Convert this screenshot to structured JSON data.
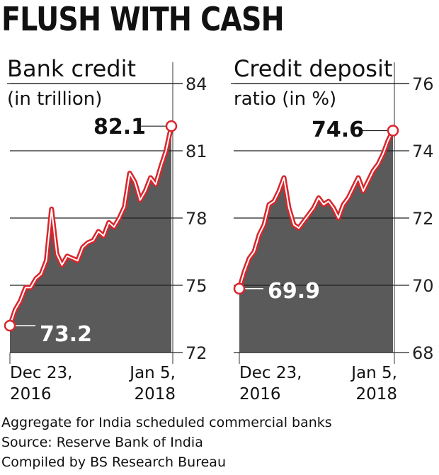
{
  "headline": "FLUSH WITH CASH",
  "chart_data": [
    {
      "type": "area",
      "title_lines": [
        "Bank credit",
        "(in trillion)"
      ],
      "ylim": [
        72,
        84
      ],
      "yticks": [
        84,
        81,
        78,
        75,
        72
      ],
      "x_labels": [
        [
          "Dec 23,",
          "2016"
        ],
        [
          "Jan 5,",
          "2018"
        ]
      ],
      "start_label": "73.2",
      "end_label": "82.1",
      "values": [
        73.2,
        73.9,
        74.3,
        74.9,
        74.9,
        75.3,
        75.5,
        76.1,
        78.4,
        76.4,
        75.9,
        76.3,
        76.2,
        76.1,
        76.7,
        76.9,
        77.0,
        77.4,
        77.2,
        77.8,
        77.6,
        78.0,
        78.5,
        80.0,
        79.6,
        78.8,
        79.2,
        79.8,
        79.5,
        80.3,
        81.0,
        82.1
      ]
    },
    {
      "type": "area",
      "title_lines": [
        "Credit deposit",
        "ratio (in %)"
      ],
      "ylim": [
        68,
        76
      ],
      "yticks": [
        76,
        74,
        72,
        70,
        68
      ],
      "x_labels": [
        [
          "Dec 23,",
          "2016"
        ],
        [
          "Jan 5,",
          "2018"
        ]
      ],
      "start_label": "69.9",
      "end_label": "74.6",
      "values": [
        69.9,
        70.4,
        70.8,
        71.0,
        71.5,
        71.8,
        72.4,
        72.5,
        72.8,
        73.2,
        72.3,
        71.8,
        71.7,
        71.9,
        72.1,
        72.3,
        72.6,
        72.4,
        72.5,
        72.3,
        72.0,
        72.4,
        72.6,
        72.9,
        73.2,
        72.8,
        73.1,
        73.4,
        73.6,
        73.9,
        74.3,
        74.6
      ]
    }
  ],
  "footer": [
    "Aggregate for India scheduled commercial banks",
    "Source: Reserve Bank of India",
    "Compiled by BS Research Bureau"
  ]
}
